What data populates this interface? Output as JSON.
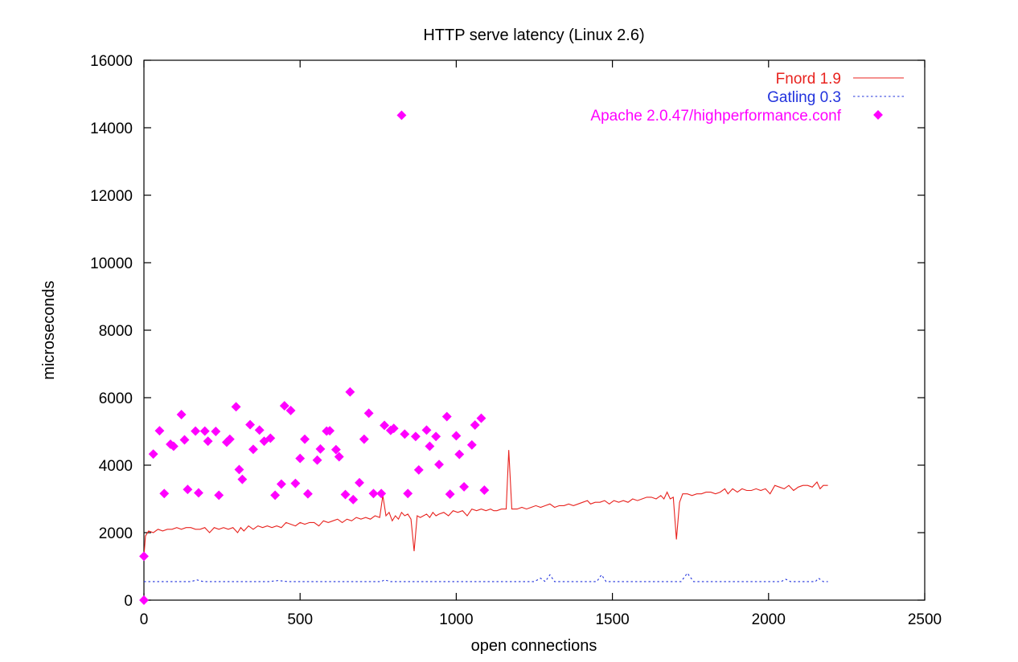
{
  "chart_data": {
    "type": "line",
    "title": "HTTP serve latency (Linux 2.6)",
    "xlabel": "open connections",
    "ylabel": "microseconds",
    "xlim": [
      0,
      2500
    ],
    "ylim": [
      0,
      16000
    ],
    "xticks": [
      0,
      500,
      1000,
      1500,
      2000,
      2500
    ],
    "yticks": [
      0,
      2000,
      4000,
      6000,
      8000,
      10000,
      12000,
      14000,
      16000
    ],
    "grid": false,
    "legend_position": "top-right",
    "series": [
      {
        "name": "Fnord 1.9",
        "style": "line",
        "color": "#e8231f",
        "points": [
          [
            0,
            1300
          ],
          [
            5,
            1900
          ],
          [
            15,
            2050
          ],
          [
            30,
            2000
          ],
          [
            45,
            2100
          ],
          [
            60,
            2050
          ],
          [
            75,
            2100
          ],
          [
            90,
            2100
          ],
          [
            105,
            2150
          ],
          [
            120,
            2100
          ],
          [
            135,
            2150
          ],
          [
            150,
            2150
          ],
          [
            165,
            2100
          ],
          [
            180,
            2100
          ],
          [
            195,
            2150
          ],
          [
            210,
            2000
          ],
          [
            225,
            2150
          ],
          [
            240,
            2100
          ],
          [
            255,
            2150
          ],
          [
            270,
            2100
          ],
          [
            285,
            2150
          ],
          [
            300,
            2000
          ],
          [
            310,
            2150
          ],
          [
            320,
            2050
          ],
          [
            335,
            2200
          ],
          [
            350,
            2100
          ],
          [
            365,
            2200
          ],
          [
            380,
            2150
          ],
          [
            395,
            2200
          ],
          [
            410,
            2150
          ],
          [
            425,
            2200
          ],
          [
            440,
            2150
          ],
          [
            455,
            2300
          ],
          [
            470,
            2250
          ],
          [
            485,
            2200
          ],
          [
            500,
            2300
          ],
          [
            515,
            2250
          ],
          [
            530,
            2300
          ],
          [
            545,
            2300
          ],
          [
            560,
            2200
          ],
          [
            575,
            2350
          ],
          [
            590,
            2300
          ],
          [
            605,
            2350
          ],
          [
            620,
            2400
          ],
          [
            635,
            2300
          ],
          [
            650,
            2400
          ],
          [
            665,
            2350
          ],
          [
            680,
            2450
          ],
          [
            695,
            2400
          ],
          [
            710,
            2450
          ],
          [
            725,
            2400
          ],
          [
            740,
            2500
          ],
          [
            755,
            2450
          ],
          [
            765,
            3100
          ],
          [
            775,
            2500
          ],
          [
            785,
            2600
          ],
          [
            795,
            2350
          ],
          [
            805,
            2500
          ],
          [
            815,
            2400
          ],
          [
            825,
            2600
          ],
          [
            835,
            2500
          ],
          [
            845,
            2550
          ],
          [
            855,
            2400
          ],
          [
            865,
            1450
          ],
          [
            875,
            2500
          ],
          [
            885,
            2450
          ],
          [
            895,
            2500
          ],
          [
            905,
            2550
          ],
          [
            915,
            2450
          ],
          [
            925,
            2600
          ],
          [
            935,
            2500
          ],
          [
            945,
            2550
          ],
          [
            960,
            2600
          ],
          [
            975,
            2500
          ],
          [
            990,
            2650
          ],
          [
            1005,
            2600
          ],
          [
            1020,
            2650
          ],
          [
            1035,
            2500
          ],
          [
            1050,
            2700
          ],
          [
            1065,
            2650
          ],
          [
            1080,
            2700
          ],
          [
            1095,
            2650
          ],
          [
            1110,
            2700
          ],
          [
            1120,
            2650
          ],
          [
            1130,
            2650
          ],
          [
            1145,
            2700
          ],
          [
            1160,
            2700
          ],
          [
            1168,
            4450
          ],
          [
            1178,
            2700
          ],
          [
            1195,
            2700
          ],
          [
            1210,
            2750
          ],
          [
            1225,
            2700
          ],
          [
            1240,
            2750
          ],
          [
            1255,
            2800
          ],
          [
            1270,
            2750
          ],
          [
            1285,
            2800
          ],
          [
            1300,
            2850
          ],
          [
            1315,
            2750
          ],
          [
            1330,
            2800
          ],
          [
            1345,
            2800
          ],
          [
            1360,
            2850
          ],
          [
            1375,
            2800
          ],
          [
            1390,
            2850
          ],
          [
            1405,
            2900
          ],
          [
            1420,
            2950
          ],
          [
            1430,
            2850
          ],
          [
            1445,
            2900
          ],
          [
            1460,
            2900
          ],
          [
            1475,
            2950
          ],
          [
            1490,
            2850
          ],
          [
            1505,
            2950
          ],
          [
            1520,
            2900
          ],
          [
            1535,
            2950
          ],
          [
            1550,
            2900
          ],
          [
            1565,
            3000
          ],
          [
            1580,
            2950
          ],
          [
            1595,
            3000
          ],
          [
            1610,
            3050
          ],
          [
            1625,
            3050
          ],
          [
            1640,
            3000
          ],
          [
            1655,
            3100
          ],
          [
            1665,
            3000
          ],
          [
            1675,
            3200
          ],
          [
            1685,
            3000
          ],
          [
            1695,
            3050
          ],
          [
            1705,
            1800
          ],
          [
            1715,
            2900
          ],
          [
            1725,
            3150
          ],
          [
            1740,
            3150
          ],
          [
            1755,
            3100
          ],
          [
            1770,
            3150
          ],
          [
            1785,
            3150
          ],
          [
            1800,
            3200
          ],
          [
            1815,
            3200
          ],
          [
            1830,
            3150
          ],
          [
            1845,
            3200
          ],
          [
            1860,
            3300
          ],
          [
            1870,
            3150
          ],
          [
            1885,
            3300
          ],
          [
            1900,
            3200
          ],
          [
            1915,
            3300
          ],
          [
            1930,
            3250
          ],
          [
            1945,
            3250
          ],
          [
            1960,
            3300
          ],
          [
            1975,
            3250
          ],
          [
            1990,
            3300
          ],
          [
            2005,
            3150
          ],
          [
            2020,
            3400
          ],
          [
            2035,
            3350
          ],
          [
            2050,
            3300
          ],
          [
            2065,
            3400
          ],
          [
            2080,
            3250
          ],
          [
            2095,
            3350
          ],
          [
            2110,
            3400
          ],
          [
            2125,
            3400
          ],
          [
            2140,
            3350
          ],
          [
            2155,
            3500
          ],
          [
            2165,
            3300
          ],
          [
            2175,
            3400
          ],
          [
            2190,
            3400
          ]
        ]
      },
      {
        "name": "Gatling 0.3",
        "style": "dashed-line",
        "color": "#2233dd",
        "points": [
          [
            0,
            550
          ],
          [
            150,
            550
          ],
          [
            170,
            600
          ],
          [
            190,
            550
          ],
          [
            400,
            550
          ],
          [
            430,
            580
          ],
          [
            460,
            550
          ],
          [
            760,
            550
          ],
          [
            770,
            600
          ],
          [
            790,
            550
          ],
          [
            1250,
            550
          ],
          [
            1270,
            650
          ],
          [
            1285,
            550
          ],
          [
            1300,
            750
          ],
          [
            1315,
            550
          ],
          [
            1450,
            550
          ],
          [
            1465,
            750
          ],
          [
            1480,
            550
          ],
          [
            1720,
            550
          ],
          [
            1740,
            800
          ],
          [
            1760,
            550
          ],
          [
            2040,
            550
          ],
          [
            2055,
            620
          ],
          [
            2070,
            550
          ],
          [
            2150,
            550
          ],
          [
            2160,
            650
          ],
          [
            2175,
            550
          ],
          [
            2190,
            550
          ]
        ]
      },
      {
        "name": "Apache 2.0.47/highperformance.conf",
        "style": "points",
        "color": "#ff00ff",
        "points": [
          [
            0,
            1300
          ],
          [
            0,
            0
          ],
          [
            30,
            4330
          ],
          [
            50,
            5020
          ],
          [
            65,
            3160
          ],
          [
            85,
            4620
          ],
          [
            95,
            4560
          ],
          [
            120,
            5500
          ],
          [
            130,
            4750
          ],
          [
            140,
            3280
          ],
          [
            165,
            5010
          ],
          [
            175,
            3180
          ],
          [
            195,
            5010
          ],
          [
            205,
            4710
          ],
          [
            230,
            5000
          ],
          [
            240,
            3110
          ],
          [
            265,
            4680
          ],
          [
            275,
            4770
          ],
          [
            295,
            5730
          ],
          [
            305,
            3870
          ],
          [
            315,
            3580
          ],
          [
            340,
            5200
          ],
          [
            350,
            4470
          ],
          [
            370,
            5040
          ],
          [
            385,
            4710
          ],
          [
            405,
            4800
          ],
          [
            420,
            3110
          ],
          [
            440,
            3440
          ],
          [
            450,
            5760
          ],
          [
            470,
            5620
          ],
          [
            485,
            3460
          ],
          [
            500,
            4200
          ],
          [
            515,
            4770
          ],
          [
            525,
            3150
          ],
          [
            555,
            4150
          ],
          [
            565,
            4480
          ],
          [
            585,
            5010
          ],
          [
            595,
            5020
          ],
          [
            615,
            4460
          ],
          [
            625,
            4250
          ],
          [
            645,
            3130
          ],
          [
            660,
            6170
          ],
          [
            670,
            2980
          ],
          [
            690,
            3480
          ],
          [
            705,
            4770
          ],
          [
            720,
            5540
          ],
          [
            735,
            3160
          ],
          [
            760,
            3160
          ],
          [
            770,
            5180
          ],
          [
            790,
            5030
          ],
          [
            800,
            5090
          ],
          [
            825,
            14370
          ],
          [
            835,
            4920
          ],
          [
            845,
            3160
          ],
          [
            870,
            4850
          ],
          [
            880,
            3860
          ],
          [
            905,
            5040
          ],
          [
            915,
            4560
          ],
          [
            935,
            4850
          ],
          [
            945,
            4020
          ],
          [
            970,
            5440
          ],
          [
            980,
            3140
          ],
          [
            1000,
            4870
          ],
          [
            1010,
            4320
          ],
          [
            1025,
            3360
          ],
          [
            1050,
            4600
          ],
          [
            1060,
            5190
          ],
          [
            1080,
            5390
          ],
          [
            1090,
            3260
          ]
        ]
      }
    ]
  }
}
